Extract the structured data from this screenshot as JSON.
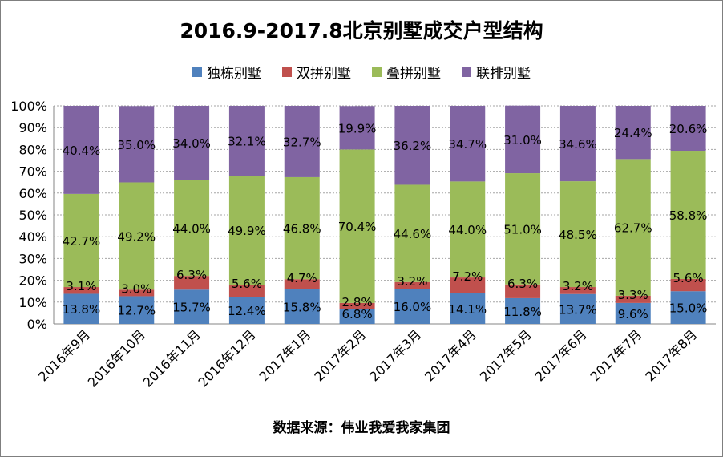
{
  "chart_data": {
    "type": "bar",
    "stacked": true,
    "title": "2016.9-2017.8北京别墅成交户型结构",
    "source": "数据来源：伟业我爱我家集团",
    "categories": [
      "2016年9月",
      "2016年10月",
      "2016年11月",
      "2016年12月",
      "2017年1月",
      "2017年2月",
      "2017年3月",
      "2017年4月",
      "2017年5月",
      "2017年6月",
      "2017年7月",
      "2017年8月"
    ],
    "ylim": [
      0,
      100
    ],
    "yticks": [
      "0%",
      "10%",
      "20%",
      "30%",
      "40%",
      "50%",
      "60%",
      "70%",
      "80%",
      "90%",
      "100%"
    ],
    "grid": true,
    "legend_position": "top",
    "series": [
      {
        "name": "独栋别墅",
        "color": "#4f81bd",
        "values": [
          13.8,
          12.7,
          15.7,
          12.4,
          15.8,
          6.8,
          16.0,
          14.1,
          11.8,
          13.7,
          9.6,
          15.0
        ],
        "labels": [
          "13.8%",
          "12.7%",
          "15.7%",
          "12.4%",
          "15.8%",
          "6.8%",
          "16.0%",
          "14.1%",
          "11.8%",
          "13.7%",
          "9.6%",
          "15.0%"
        ]
      },
      {
        "name": "双拼别墅",
        "color": "#c0504d",
        "values": [
          3.1,
          3.0,
          6.3,
          5.6,
          4.7,
          2.8,
          3.2,
          7.2,
          6.3,
          3.2,
          3.3,
          5.6
        ],
        "labels": [
          "3.1%",
          "3.0%",
          "6.3%",
          "5.6%",
          "4.7%",
          "2.8%",
          "3.2%",
          "7.2%",
          "6.3%",
          "3.2%",
          "3.3%",
          "5.6%"
        ]
      },
      {
        "name": "叠拼别墅",
        "color": "#9bbb59",
        "values": [
          42.7,
          49.2,
          44.0,
          49.9,
          46.8,
          70.4,
          44.6,
          44.0,
          51.0,
          48.5,
          62.7,
          58.8
        ],
        "labels": [
          "42.7%",
          "49.2%",
          "44.0%",
          "49.9%",
          "46.8%",
          "70.4%",
          "44.6%",
          "44.0%",
          "51.0%",
          "48.5%",
          "62.7%",
          "58.8%"
        ]
      },
      {
        "name": "联排别墅",
        "color": "#8064a2",
        "values": [
          40.4,
          35.0,
          34.0,
          32.1,
          32.7,
          19.9,
          36.2,
          34.7,
          31.0,
          34.6,
          24.4,
          20.6
        ],
        "labels": [
          "40.4%",
          "35.0%",
          "34.0%",
          "32.1%",
          "32.7%",
          "19.9%",
          "36.2%",
          "34.7%",
          "31.0%",
          "34.6%",
          "24.4%",
          "20.6%"
        ]
      }
    ]
  }
}
